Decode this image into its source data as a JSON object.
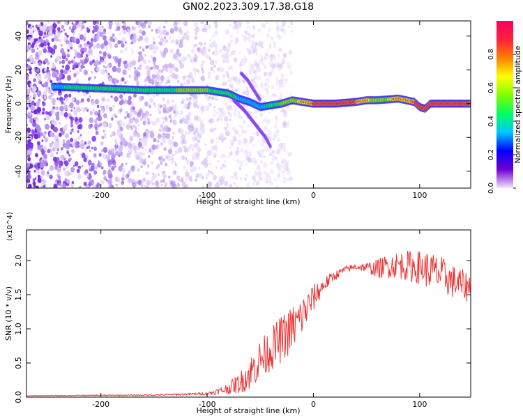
{
  "figure": {
    "title": "GN02.2023.309.17.38.G18"
  },
  "colors": {
    "spectrogram_ramp": [
      "#ffffff",
      "#e8d8fa",
      "#c8a8f4",
      "#9c5cec",
      "#7010e8",
      "#2000ff",
      "#0050ff",
      "#00d4ff",
      "#00ff80",
      "#40ff00",
      "#d0ff00",
      "#ffb000",
      "#ff3030",
      "#ff0080"
    ],
    "snr_line": "#ee3333"
  },
  "chart_data": [
    {
      "type": "heatmap",
      "xlabel": "Height of straight line (km)",
      "ylabel": "Frequency (Hz)",
      "xlim": [
        -270,
        148
      ],
      "ylim": [
        -50,
        49
      ],
      "xticks": [
        -200,
        -100,
        0,
        100
      ],
      "yticks": [
        -40,
        -20,
        0,
        20,
        40
      ],
      "colorbar": {
        "label": "Normalized spectral amplitude",
        "range": [
          0.0,
          1.0
        ],
        "ticks": [
          0.0,
          0.2,
          0.4,
          0.6,
          0.8
        ]
      },
      "ridge": {
        "description_points_x": [
          -240,
          -200,
          -160,
          -120,
          -100,
          -90,
          -80,
          -70,
          -60,
          -50,
          -40,
          -30,
          -20,
          -10,
          0,
          20,
          40,
          50,
          60,
          80,
          95,
          100,
          105,
          110,
          120,
          148
        ],
        "frequency_hz": [
          10,
          9,
          8,
          8,
          8,
          7,
          6,
          3,
          1,
          -2,
          -1,
          0,
          2,
          1,
          0,
          0,
          1,
          2,
          2,
          3,
          1,
          -2,
          -3,
          0,
          0,
          0
        ],
        "amplitude": [
          0.45,
          0.5,
          0.55,
          0.6,
          0.6,
          0.55,
          0.5,
          0.45,
          0.45,
          0.4,
          0.5,
          0.6,
          0.65,
          0.75,
          0.85,
          0.9,
          0.85,
          0.75,
          0.65,
          0.75,
          0.85,
          0.9,
          0.85,
          0.85,
          0.9,
          0.9
        ]
      },
      "branch_upper": {
        "x": [
          -68,
          -62,
          -56,
          -50
        ],
        "frequency_hz": [
          18,
          14,
          8,
          2
        ]
      },
      "branch_lower": {
        "x": [
          -75,
          -65,
          -55,
          -45,
          -40
        ],
        "frequency_hz": [
          2,
          -4,
          -12,
          -20,
          -26
        ]
      }
    },
    {
      "type": "line",
      "xlabel": "Height of straight line (km)",
      "ylabel": "SNR (10 * v/v)",
      "y_multiplier": "(x10^4)",
      "xlim": [
        -270,
        148
      ],
      "ylim": [
        0,
        24500
      ],
      "xticks": [
        -200,
        -100,
        0,
        100
      ],
      "yticks": [
        0.0,
        0.5,
        1.0,
        1.5,
        2.0
      ],
      "series": [
        {
          "envelope_x": [
            -270,
            -150,
            -100,
            -85,
            -70,
            -60,
            -50,
            -40,
            -30,
            -20,
            -10,
            0,
            10,
            20,
            30,
            40,
            50,
            60,
            70,
            80,
            90,
            100,
            110,
            120,
            130,
            148
          ],
          "envelope_y": [
            200,
            300,
            500,
            1000,
            2000,
            3500,
            5500,
            7000,
            8500,
            10000,
            12000,
            14500,
            16500,
            17800,
            18700,
            19100,
            19000,
            18800,
            19200,
            19400,
            19200,
            19000,
            18500,
            18000,
            17000,
            16000
          ],
          "noise_amp": [
            50,
            100,
            200,
            600,
            1500,
            2500,
            3000,
            3200,
            3500,
            3500,
            3000,
            2000,
            1200,
            700,
            500,
            500,
            700,
            1400,
            1800,
            2000,
            2300,
            2500,
            2800,
            2700,
            2500,
            2200
          ]
        }
      ]
    }
  ]
}
